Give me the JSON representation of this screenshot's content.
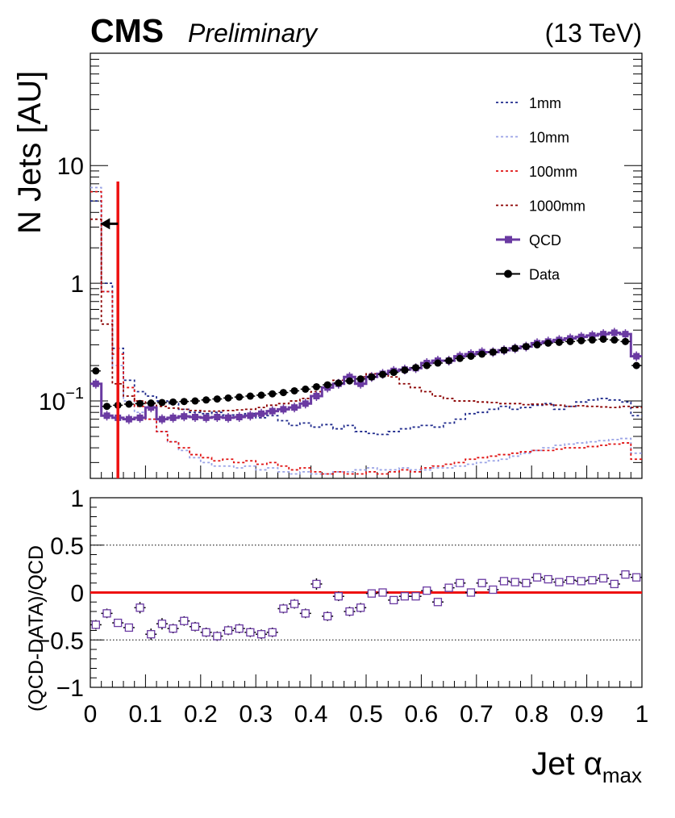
{
  "header": {
    "experiment": "CMS",
    "status": "Preliminary",
    "energy": "(13 TeV)"
  },
  "colors": {
    "1mm": "#1f2a8c",
    "10mm": "#9aa3e6",
    "100mm": "#e01010",
    "1000mm": "#8b0000",
    "QCD": "#6a3aa2",
    "Data": "#000000",
    "cut_line": "#ee1111"
  },
  "chart_data": [
    {
      "type": "line",
      "panel": "main",
      "ylabel": "N Jets [AU]",
      "y_scale": "log",
      "ylim": [
        0.022,
        90
      ],
      "xlim": [
        0,
        1
      ],
      "y_tick_labels": [
        {
          "value": 10,
          "label": "10"
        },
        {
          "value": 1,
          "label": "1"
        },
        {
          "value": 0.1,
          "label": "10^-1"
        }
      ],
      "legend_placement": "top-right",
      "legend": [
        "1mm",
        "10mm",
        "100mm",
        "1000mm",
        "QCD",
        "Data"
      ],
      "cut_line_x": 0.05,
      "arrow": {
        "direction": "left",
        "y": 3.2,
        "x_from": 0.05,
        "x_to": 0.018
      },
      "bin_edges": [
        0,
        0.02,
        0.04,
        0.06,
        0.08,
        0.1,
        0.12,
        0.14,
        0.16,
        0.18,
        0.2,
        0.22,
        0.24,
        0.26,
        0.28,
        0.3,
        0.32,
        0.34,
        0.36,
        0.38,
        0.4,
        0.42,
        0.44,
        0.46,
        0.48,
        0.5,
        0.52,
        0.54,
        0.56,
        0.58,
        0.6,
        0.62,
        0.64,
        0.66,
        0.68,
        0.7,
        0.72,
        0.74,
        0.76,
        0.78,
        0.8,
        0.82,
        0.84,
        0.86,
        0.88,
        0.9,
        0.92,
        0.94,
        0.96,
        0.98,
        1.0
      ],
      "series": [
        {
          "name": "1mm",
          "style": "dotted-step",
          "values": [
            5.0,
            1.0,
            0.28,
            0.15,
            0.12,
            0.11,
            0.1,
            0.095,
            0.085,
            0.08,
            0.078,
            0.08,
            0.076,
            0.075,
            0.078,
            0.072,
            0.075,
            0.068,
            0.062,
            0.065,
            0.06,
            0.063,
            0.058,
            0.062,
            0.055,
            0.053,
            0.052,
            0.055,
            0.058,
            0.06,
            0.062,
            0.06,
            0.065,
            0.07,
            0.078,
            0.08,
            0.085,
            0.09,
            0.085,
            0.088,
            0.092,
            0.095,
            0.085,
            0.09,
            0.098,
            0.102,
            0.105,
            0.102,
            0.098,
            0.075
          ]
        },
        {
          "name": "10mm",
          "style": "dotted-step",
          "values": [
            6.5,
            0.85,
            0.2,
            0.1,
            0.08,
            0.07,
            0.055,
            0.045,
            0.038,
            0.033,
            0.03,
            0.028,
            0.028,
            0.027,
            0.028,
            0.026,
            0.027,
            0.025,
            0.024,
            0.025,
            0.024,
            0.024,
            0.025,
            0.025,
            0.026,
            0.027,
            0.026,
            0.026,
            0.027,
            0.026,
            0.026,
            0.027,
            0.027,
            0.028,
            0.029,
            0.03,
            0.031,
            0.032,
            0.034,
            0.036,
            0.038,
            0.04,
            0.042,
            0.043,
            0.044,
            0.045,
            0.046,
            0.047,
            0.048,
            0.036
          ]
        },
        {
          "name": "100mm",
          "style": "dotted-step",
          "values": [
            6.0,
            0.85,
            0.25,
            0.13,
            0.09,
            0.07,
            0.055,
            0.045,
            0.04,
            0.035,
            0.033,
            0.031,
            0.032,
            0.03,
            0.031,
            0.029,
            0.03,
            0.028,
            0.026,
            0.027,
            0.025,
            0.024,
            0.025,
            0.024,
            0.024,
            0.025,
            0.024,
            0.025,
            0.026,
            0.025,
            0.027,
            0.028,
            0.029,
            0.03,
            0.032,
            0.033,
            0.034,
            0.035,
            0.036,
            0.037,
            0.038,
            0.038,
            0.039,
            0.04,
            0.04,
            0.041,
            0.042,
            0.043,
            0.044,
            0.032
          ]
        },
        {
          "name": "1000mm",
          "style": "dotted-step",
          "values": [
            3.5,
            0.45,
            0.14,
            0.11,
            0.1,
            0.095,
            0.09,
            0.087,
            0.085,
            0.083,
            0.082,
            0.082,
            0.083,
            0.084,
            0.085,
            0.088,
            0.092,
            0.095,
            0.1,
            0.105,
            0.12,
            0.13,
            0.15,
            0.16,
            0.16,
            0.17,
            0.17,
            0.16,
            0.14,
            0.13,
            0.12,
            0.11,
            0.105,
            0.1,
            0.1,
            0.098,
            0.097,
            0.095,
            0.095,
            0.093,
            0.094,
            0.093,
            0.092,
            0.09,
            0.091,
            0.09,
            0.089,
            0.088,
            0.09,
            0.088
          ]
        },
        {
          "name": "QCD",
          "style": "solid-step-square",
          "values": [
            0.14,
            0.075,
            0.072,
            0.07,
            0.072,
            0.088,
            0.07,
            0.072,
            0.074,
            0.073,
            0.072,
            0.073,
            0.072,
            0.073,
            0.075,
            0.078,
            0.082,
            0.085,
            0.088,
            0.095,
            0.11,
            0.13,
            0.14,
            0.16,
            0.14,
            0.16,
            0.17,
            0.18,
            0.185,
            0.19,
            0.21,
            0.22,
            0.22,
            0.24,
            0.25,
            0.26,
            0.26,
            0.27,
            0.28,
            0.29,
            0.31,
            0.32,
            0.33,
            0.34,
            0.35,
            0.36,
            0.37,
            0.38,
            0.37,
            0.24
          ]
        },
        {
          "name": "Data",
          "style": "points",
          "values": [
            0.18,
            0.09,
            0.092,
            0.094,
            0.095,
            0.096,
            0.097,
            0.098,
            0.099,
            0.1,
            0.102,
            0.104,
            0.106,
            0.108,
            0.11,
            0.112,
            0.115,
            0.118,
            0.122,
            0.126,
            0.132,
            0.137,
            0.142,
            0.148,
            0.154,
            0.16,
            0.168,
            0.175,
            0.183,
            0.192,
            0.2,
            0.21,
            0.22,
            0.23,
            0.24,
            0.25,
            0.26,
            0.27,
            0.28,
            0.29,
            0.3,
            0.31,
            0.315,
            0.32,
            0.325,
            0.33,
            0.335,
            0.33,
            0.32,
            0.2
          ]
        }
      ]
    },
    {
      "type": "scatter",
      "panel": "ratio",
      "xlabel": "Jet α",
      "xlabel_sub": "max",
      "ylabel": "(QCD-DATA)/QCD",
      "ylim": [
        -1,
        1
      ],
      "xlim": [
        0,
        1
      ],
      "x_tick_labels": [
        "0",
        "0.1",
        "0.2",
        "0.3",
        "0.4",
        "0.5",
        "0.6",
        "0.7",
        "0.8",
        "0.9",
        "1"
      ],
      "y_tick_labels": [
        {
          "value": 1,
          "label": "1"
        },
        {
          "value": 0.5,
          "label": "0.5"
        },
        {
          "value": 0,
          "label": "0"
        },
        {
          "value": -0.5,
          "label": "−0.5"
        },
        {
          "value": -1,
          "label": "−1"
        }
      ],
      "reference_lines": [
        0.5,
        -0.5
      ],
      "zero_line": 0,
      "x": [
        0.01,
        0.03,
        0.05,
        0.07,
        0.09,
        0.11,
        0.13,
        0.15,
        0.17,
        0.19,
        0.21,
        0.23,
        0.25,
        0.27,
        0.29,
        0.31,
        0.33,
        0.35,
        0.37,
        0.39,
        0.41,
        0.43,
        0.45,
        0.47,
        0.49,
        0.51,
        0.53,
        0.55,
        0.57,
        0.59,
        0.61,
        0.63,
        0.65,
        0.67,
        0.69,
        0.71,
        0.73,
        0.75,
        0.77,
        0.79,
        0.81,
        0.83,
        0.85,
        0.87,
        0.89,
        0.91,
        0.93,
        0.95,
        0.97,
        0.99
      ],
      "values": [
        -0.34,
        -0.22,
        -0.32,
        -0.37,
        -0.16,
        -0.44,
        -0.33,
        -0.38,
        -0.3,
        -0.36,
        -0.42,
        -0.46,
        -0.4,
        -0.38,
        -0.42,
        -0.44,
        -0.42,
        -0.17,
        -0.12,
        -0.22,
        0.09,
        -0.25,
        -0.04,
        -0.2,
        -0.16,
        -0.01,
        0.0,
        -0.08,
        -0.04,
        -0.04,
        0.02,
        -0.1,
        0.05,
        0.1,
        0.0,
        0.1,
        0.03,
        0.12,
        0.11,
        0.1,
        0.16,
        0.14,
        0.11,
        0.13,
        0.12,
        0.13,
        0.15,
        0.09,
        0.19,
        0.16
      ],
      "errors": [
        0.05,
        0.05,
        0.04,
        0.04,
        0.06,
        0.06,
        0.06,
        0.05,
        0.05,
        0.05,
        0.05,
        0.05,
        0.05,
        0.05,
        0.05,
        0.05,
        0.05,
        0.05,
        0.05,
        0.05,
        0.06,
        0.05,
        0.05,
        0.05,
        0.05,
        0.04,
        0.04,
        0.04,
        0.04,
        0.04,
        0.04,
        0.04,
        0.04,
        0.04,
        0.04,
        0.04,
        0.04,
        0.03,
        0.03,
        0.03,
        0.03,
        0.03,
        0.03,
        0.03,
        0.03,
        0.03,
        0.03,
        0.03,
        0.03,
        0.03
      ]
    }
  ]
}
